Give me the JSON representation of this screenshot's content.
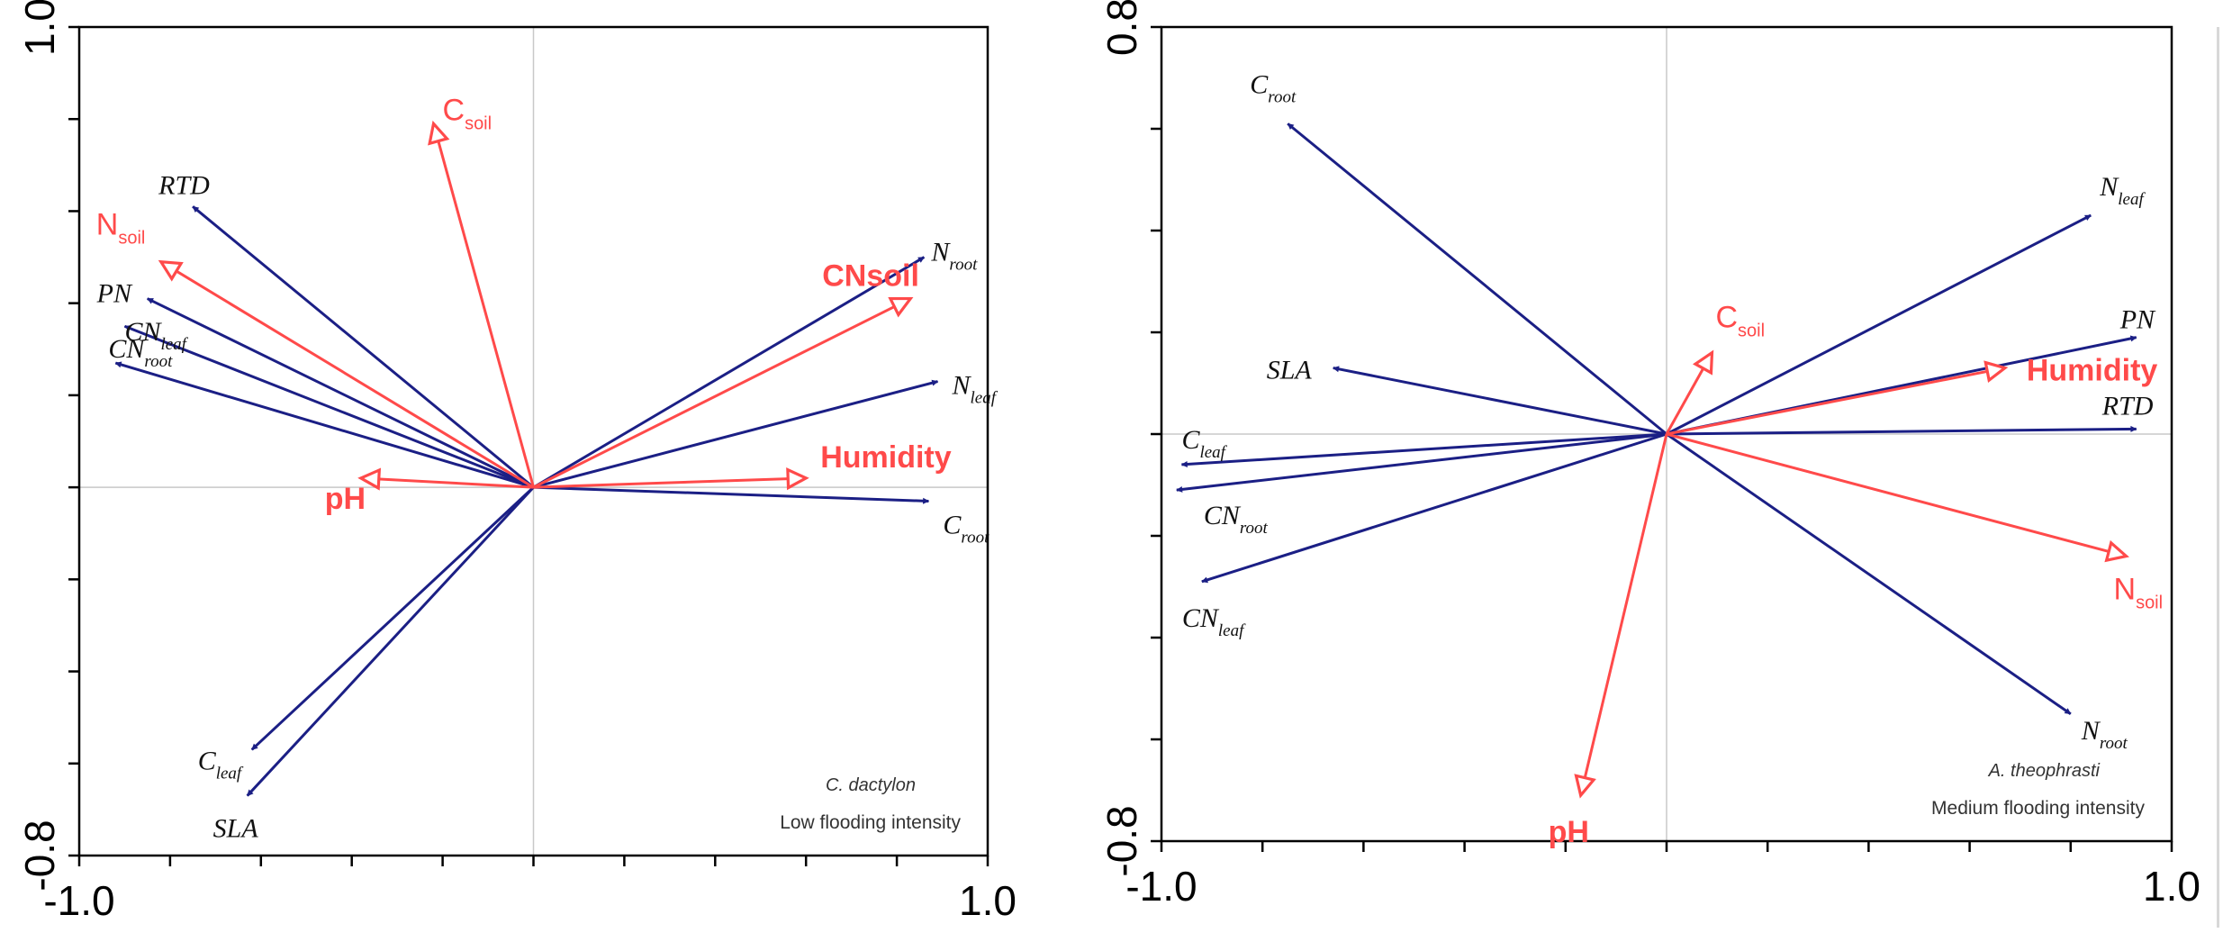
{
  "colors": {
    "trait": "#1b1f85",
    "env": "#ff4a4a",
    "frame": "#000000",
    "grid": "#c8c8c8",
    "note": "#333333"
  },
  "chart_data": [
    {
      "type": "biplot",
      "species": "C. dactylon",
      "condition": "Low flooding intensity",
      "xlim": [
        -1.0,
        1.0
      ],
      "ylim": [
        -0.8,
        1.0
      ],
      "x_tick_labels": [
        "-1.0",
        "1.0"
      ],
      "y_tick_labels": [
        "1.0",
        "-0.8"
      ],
      "trait_vectors": [
        {
          "id": "n-root",
          "base": "N",
          "sub": "root",
          "x": 0.86,
          "y": 0.5
        },
        {
          "id": "n-leaf",
          "base": "N",
          "sub": "leaf",
          "x": 0.89,
          "y": 0.23
        },
        {
          "id": "c-root",
          "base": "C",
          "sub": "root",
          "x": 0.87,
          "y": -0.03
        },
        {
          "id": "rtd",
          "base": "RTD",
          "sub": "",
          "x": -0.75,
          "y": 0.61
        },
        {
          "id": "pn",
          "base": "PN",
          "sub": "",
          "x": -0.85,
          "y": 0.41
        },
        {
          "id": "cn-root",
          "base": "CN",
          "sub": "root",
          "x": -0.92,
          "y": 0.27
        },
        {
          "id": "cn-leaf",
          "base": "CN",
          "sub": "leaf",
          "x": -0.9,
          "y": 0.35
        },
        {
          "id": "c-leaf",
          "base": "C",
          "sub": "leaf",
          "x": -0.62,
          "y": -0.57
        },
        {
          "id": "sla",
          "base": "SLA",
          "sub": "",
          "x": -0.63,
          "y": -0.67
        }
      ],
      "env_vectors": [
        {
          "id": "c-soil",
          "base": "C",
          "sub": "soil",
          "x": -0.22,
          "y": 0.79
        },
        {
          "id": "n-soil",
          "base": "N",
          "sub": "soil",
          "x": -0.82,
          "y": 0.49
        },
        {
          "id": "cn-soil",
          "base": "CNsoil",
          "sub": "",
          "x": 0.83,
          "y": 0.41
        },
        {
          "id": "humidity",
          "base": "Humidity",
          "sub": "",
          "x": 0.6,
          "y": 0.02
        },
        {
          "id": "ph",
          "base": "pH",
          "sub": "",
          "x": -0.38,
          "y": 0.02
        }
      ]
    },
    {
      "type": "biplot",
      "species": "A. theophrasti",
      "condition": "Medium flooding intensity",
      "xlim": [
        -1.0,
        1.0
      ],
      "ylim": [
        -0.8,
        0.8
      ],
      "x_tick_labels": [
        "-1.0",
        "1.0"
      ],
      "y_tick_labels": [
        "0.8",
        "-0.8"
      ],
      "trait_vectors": [
        {
          "id": "c-root",
          "base": "C",
          "sub": "root",
          "x": -0.75,
          "y": 0.61
        },
        {
          "id": "n-leaf",
          "base": "N",
          "sub": "leaf",
          "x": 0.84,
          "y": 0.43
        },
        {
          "id": "pn",
          "base": "PN",
          "sub": "",
          "x": 0.93,
          "y": 0.19
        },
        {
          "id": "rtd",
          "base": "RTD",
          "sub": "",
          "x": 0.93,
          "y": 0.01
        },
        {
          "id": "sla",
          "base": "SLA",
          "sub": "",
          "x": -0.66,
          "y": 0.13
        },
        {
          "id": "c-leaf",
          "base": "C",
          "sub": "leaf",
          "x": -0.96,
          "y": -0.06
        },
        {
          "id": "cn-root",
          "base": "CN",
          "sub": "root",
          "x": -0.97,
          "y": -0.11
        },
        {
          "id": "cn-leaf",
          "base": "CN",
          "sub": "leaf",
          "x": -0.92,
          "y": -0.29
        },
        {
          "id": "n-root",
          "base": "N",
          "sub": "root",
          "x": 0.8,
          "y": -0.55
        }
      ],
      "env_vectors": [
        {
          "id": "c-soil",
          "base": "C",
          "sub": "soil",
          "x": 0.09,
          "y": 0.16
        },
        {
          "id": "humidity",
          "base": "Humidity",
          "sub": "",
          "x": 0.67,
          "y": 0.13
        },
        {
          "id": "n-soil",
          "base": "N",
          "sub": "soil",
          "x": 0.91,
          "y": -0.24
        },
        {
          "id": "ph",
          "base": "pH",
          "sub": "",
          "x": -0.17,
          "y": -0.71
        }
      ]
    }
  ]
}
